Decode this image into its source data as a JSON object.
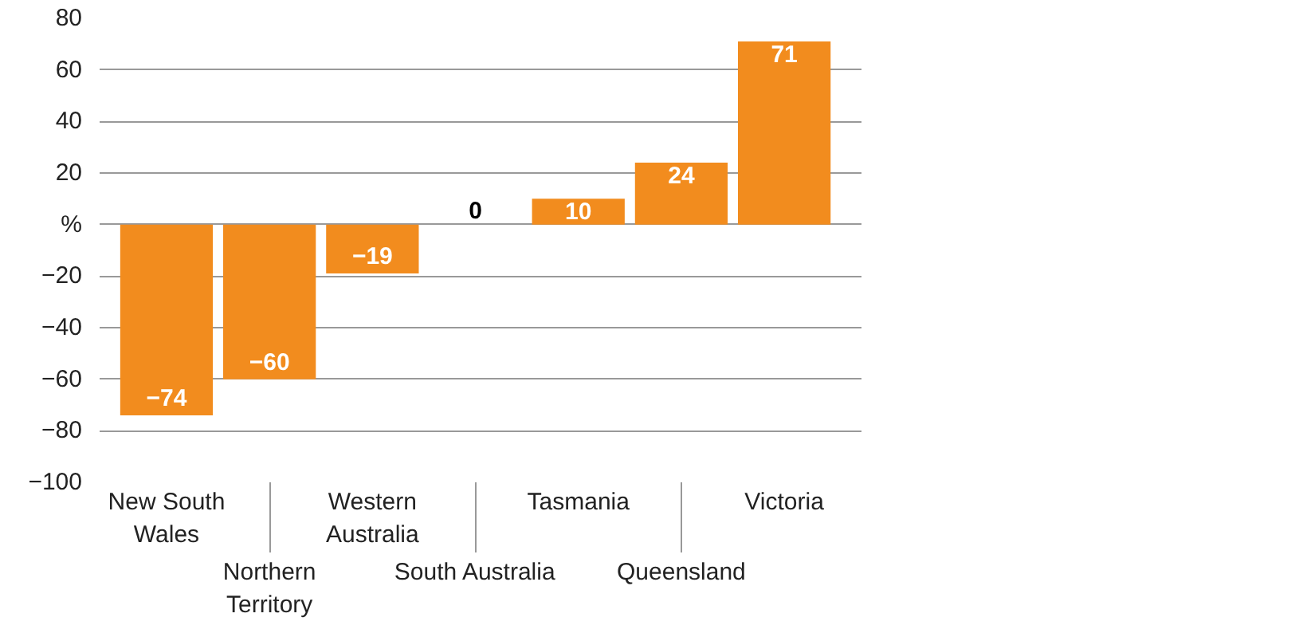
{
  "chart_data": {
    "type": "bar",
    "categories": [
      "New South Wales",
      "Northern Territory",
      "Western Australia",
      "South Australia",
      "Tasmania",
      "Queensland",
      "Victoria"
    ],
    "values": [
      -74,
      -60,
      -19,
      0,
      10,
      24,
      71
    ],
    "value_labels": [
      "−74",
      "−60",
      "−19",
      "0",
      "10",
      "24",
      "71"
    ],
    "color": "#f28c1e",
    "ylim": [
      -100,
      80
    ],
    "yticks": [
      {
        "value": -100,
        "label": "−100"
      },
      {
        "value": -80,
        "label": "−80"
      },
      {
        "value": -60,
        "label": "−60"
      },
      {
        "value": -40,
        "label": "−40"
      },
      {
        "value": -20,
        "label": "−20"
      },
      {
        "value": 0,
        "label": "%"
      },
      20,
      40,
      60,
      80
    ],
    "grid": "y"
  }
}
